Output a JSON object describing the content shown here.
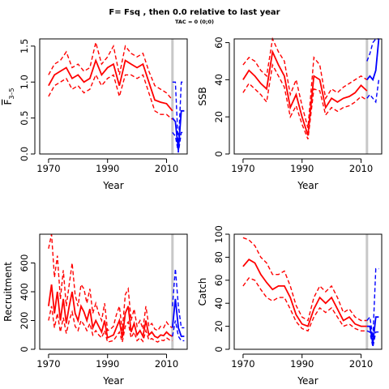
{
  "page": {
    "title": "F= Fsq , then 0.0  relative to last year",
    "subtitle": "TAC = 0 (0;0)"
  },
  "colors": {
    "history": "#ff0000",
    "projection": "#0000ff",
    "marker": "#c8c8c8",
    "axis": "#000000"
  },
  "chart_data": [
    {
      "id": "fbar",
      "type": "line",
      "title": "",
      "xlabel": "Year",
      "ylabel": "F̅ 3–5",
      "ylabel_main": "F",
      "ylabel_sub": "3–5",
      "xlim": [
        1967,
        2017
      ],
      "ylim": [
        0,
        1.6
      ],
      "xticks": [
        1970,
        1990,
        2010
      ],
      "xtick_labels": [
        "1970",
        "1990",
        "2010"
      ],
      "yticks": [
        0,
        0.5,
        1.0,
        1.5
      ],
      "ytick_labels": [
        "0.0",
        "0.5",
        "1.0",
        "1.5"
      ],
      "marker_year": 2012,
      "series": [
        {
          "role": "history-median",
          "x": [
            1970,
            1972,
            1974,
            1976,
            1978,
            1980,
            1982,
            1984,
            1986,
            1988,
            1990,
            1992,
            1994,
            1996,
            1998,
            2000,
            2002,
            2004,
            2006,
            2008,
            2010,
            2012
          ],
          "y": [
            0.95,
            1.1,
            1.15,
            1.2,
            1.05,
            1.1,
            1.0,
            1.05,
            1.3,
            1.1,
            1.2,
            1.25,
            0.95,
            1.3,
            1.25,
            1.2,
            1.25,
            1.0,
            0.75,
            0.72,
            0.7,
            0.6
          ]
        },
        {
          "role": "history-upper",
          "x": [
            1970,
            1972,
            1974,
            1976,
            1978,
            1980,
            1982,
            1984,
            1986,
            1988,
            1990,
            1992,
            1994,
            1996,
            1998,
            2000,
            2002,
            2004,
            2006,
            2008,
            2010,
            2012
          ],
          "y": [
            1.1,
            1.25,
            1.3,
            1.42,
            1.2,
            1.25,
            1.15,
            1.2,
            1.55,
            1.25,
            1.35,
            1.5,
            1.1,
            1.5,
            1.4,
            1.35,
            1.4,
            1.15,
            0.95,
            0.9,
            0.85,
            0.75
          ]
        },
        {
          "role": "history-lower",
          "x": [
            1970,
            1972,
            1974,
            1976,
            1978,
            1980,
            1982,
            1984,
            1986,
            1988,
            1990,
            1992,
            1994,
            1996,
            1998,
            2000,
            2002,
            2004,
            2006,
            2008,
            2010,
            2012
          ],
          "y": [
            0.8,
            0.95,
            1.0,
            1.05,
            0.9,
            0.95,
            0.85,
            0.9,
            1.1,
            0.95,
            1.05,
            1.1,
            0.8,
            1.1,
            1.1,
            1.05,
            1.1,
            0.85,
            0.6,
            0.55,
            0.55,
            0.48
          ]
        },
        {
          "role": "projection-median",
          "x": [
            2012,
            2013,
            2014,
            2015,
            2016
          ],
          "y": [
            0.5,
            0.45,
            0.05,
            0.6,
            0.6
          ]
        },
        {
          "role": "projection-upper",
          "x": [
            2012,
            2013,
            2014,
            2015,
            2016
          ],
          "y": [
            1.0,
            1.0,
            0.1,
            1.0,
            1.0
          ]
        },
        {
          "role": "projection-lower",
          "x": [
            2012,
            2013,
            2014,
            2015,
            2016
          ],
          "y": [
            0.3,
            0.25,
            0.02,
            0.3,
            0.3
          ]
        }
      ]
    },
    {
      "id": "ssb",
      "type": "line",
      "title": "",
      "xlabel": "Year",
      "ylabel": "SSB",
      "xlim": [
        1967,
        2017
      ],
      "ylim": [
        0,
        62
      ],
      "xticks": [
        1970,
        1990,
        2010
      ],
      "xtick_labels": [
        "1970",
        "1990",
        "2010"
      ],
      "yticks": [
        0,
        20,
        40,
        60
      ],
      "ytick_labels": [
        "0",
        "20",
        "40",
        "60"
      ],
      "marker_year": 2012,
      "series": [
        {
          "role": "history-median",
          "x": [
            1970,
            1972,
            1974,
            1976,
            1978,
            1980,
            1982,
            1984,
            1986,
            1988,
            1990,
            1992,
            1994,
            1996,
            1998,
            2000,
            2002,
            2004,
            2006,
            2008,
            2010,
            2012
          ],
          "y": [
            40,
            45,
            42,
            38,
            35,
            55,
            48,
            42,
            25,
            32,
            20,
            10,
            42,
            40,
            25,
            30,
            28,
            30,
            31,
            33,
            37,
            34
          ]
        },
        {
          "role": "history-upper",
          "x": [
            1970,
            1972,
            1974,
            1976,
            1978,
            1980,
            1982,
            1984,
            1986,
            1988,
            1990,
            1992,
            1994,
            1996,
            1998,
            2000,
            2002,
            2004,
            2006,
            2008,
            2010,
            2012
          ],
          "y": [
            48,
            52,
            50,
            45,
            42,
            62,
            55,
            50,
            32,
            40,
            26,
            14,
            52,
            48,
            30,
            35,
            33,
            36,
            38,
            40,
            42,
            40
          ]
        },
        {
          "role": "history-lower",
          "x": [
            1970,
            1972,
            1974,
            1976,
            1978,
            1980,
            1982,
            1984,
            1986,
            1988,
            1990,
            1992,
            1994,
            1996,
            1998,
            2000,
            2002,
            2004,
            2006,
            2008,
            2010,
            2012
          ],
          "y": [
            33,
            38,
            35,
            32,
            28,
            48,
            42,
            36,
            20,
            26,
            16,
            8,
            35,
            34,
            21,
            25,
            23,
            25,
            26,
            28,
            31,
            29
          ]
        },
        {
          "role": "projection-median",
          "x": [
            2012,
            2013,
            2014,
            2015,
            2016
          ],
          "y": [
            40,
            42,
            40,
            45,
            65
          ]
        },
        {
          "role": "projection-upper",
          "x": [
            2012,
            2013,
            2014,
            2015,
            2016
          ],
          "y": [
            50,
            54,
            60,
            70,
            85
          ]
        },
        {
          "role": "projection-lower",
          "x": [
            2012,
            2013,
            2014,
            2015,
            2016
          ],
          "y": [
            30,
            32,
            30,
            28,
            40
          ]
        }
      ]
    },
    {
      "id": "recruitment",
      "type": "line",
      "title": "",
      "xlabel": "Year",
      "ylabel": "Recruitment",
      "xlim": [
        1967,
        2017
      ],
      "ylim": [
        0,
        800
      ],
      "xticks": [
        1970,
        1990,
        2010
      ],
      "xtick_labels": [
        "1970",
        "1990",
        "2010"
      ],
      "yticks": [
        0,
        200,
        400,
        600
      ],
      "ytick_labels": [
        "0",
        "200",
        "400",
        "600"
      ],
      "marker_year": 2012,
      "series": [
        {
          "role": "history-median",
          "x": [
            1970,
            1971,
            1972,
            1973,
            1974,
            1975,
            1976,
            1977,
            1978,
            1979,
            1980,
            1981,
            1982,
            1983,
            1984,
            1985,
            1986,
            1987,
            1988,
            1989,
            1990,
            1991,
            1992,
            1993,
            1994,
            1995,
            1996,
            1997,
            1998,
            1999,
            2000,
            2001,
            2002,
            2003,
            2004,
            2005,
            2006,
            2007,
            2008,
            2009,
            2010,
            2011,
            2012
          ],
          "y": [
            300,
            450,
            250,
            400,
            200,
            350,
            180,
            300,
            400,
            250,
            200,
            300,
            260,
            200,
            280,
            150,
            200,
            160,
            120,
            200,
            80,
            90,
            100,
            150,
            200,
            80,
            250,
            300,
            120,
            180,
            100,
            130,
            90,
            200,
            100,
            120,
            90,
            80,
            100,
            95,
            120,
            100,
            90
          ]
        },
        {
          "role": "history-upper",
          "x": [
            1970,
            1971,
            1972,
            1973,
            1974,
            1975,
            1976,
            1977,
            1978,
            1979,
            1980,
            1981,
            1982,
            1983,
            1984,
            1985,
            1986,
            1987,
            1988,
            1989,
            1990,
            1991,
            1992,
            1993,
            1994,
            1995,
            1996,
            1997,
            1998,
            1999,
            2000,
            2001,
            2002,
            2003,
            2004,
            2005,
            2006,
            2007,
            2008,
            2009,
            2010,
            2011,
            2012
          ],
          "y": [
            700,
            800,
            500,
            650,
            350,
            550,
            300,
            450,
            600,
            380,
            300,
            450,
            420,
            320,
            420,
            250,
            320,
            250,
            200,
            320,
            130,
            140,
            160,
            240,
            300,
            130,
            380,
            420,
            200,
            280,
            160,
            200,
            140,
            300,
            160,
            180,
            140,
            130,
            160,
            150,
            190,
            160,
            150
          ]
        },
        {
          "role": "history-lower",
          "x": [
            1970,
            1971,
            1972,
            1973,
            1974,
            1975,
            1976,
            1977,
            1978,
            1979,
            1980,
            1981,
            1982,
            1983,
            1984,
            1985,
            1986,
            1987,
            1988,
            1989,
            1990,
            1991,
            1992,
            1993,
            1994,
            1995,
            1996,
            1997,
            1998,
            1999,
            2000,
            2001,
            2002,
            2003,
            2004,
            2005,
            2006,
            2007,
            2008,
            2009,
            2010,
            2011,
            2012
          ],
          "y": [
            200,
            300,
            150,
            250,
            120,
            220,
            110,
            200,
            260,
            160,
            130,
            200,
            170,
            130,
            180,
            100,
            130,
            100,
            80,
            130,
            50,
            55,
            60,
            90,
            120,
            50,
            160,
            190,
            80,
            120,
            60,
            80,
            55,
            130,
            65,
            75,
            60,
            50,
            65,
            60,
            80,
            65,
            60
          ]
        },
        {
          "role": "projection-median",
          "x": [
            2012,
            2013,
            2014,
            2015,
            2016
          ],
          "y": [
            150,
            350,
            150,
            90,
            90
          ]
        },
        {
          "role": "projection-upper",
          "x": [
            2012,
            2013,
            2014,
            2015,
            2016
          ],
          "y": [
            300,
            560,
            300,
            150,
            150
          ]
        },
        {
          "role": "projection-lower",
          "x": [
            2012,
            2013,
            2014,
            2015,
            2016
          ],
          "y": [
            90,
            200,
            90,
            60,
            60
          ]
        }
      ]
    },
    {
      "id": "catch",
      "type": "line",
      "title": "",
      "xlabel": "Year",
      "ylabel": "Catch",
      "xlim": [
        1967,
        2017
      ],
      "ylim": [
        0,
        100
      ],
      "xticks": [
        1970,
        1990,
        2010
      ],
      "xtick_labels": [
        "1970",
        "1990",
        "2010"
      ],
      "yticks": [
        0,
        20,
        40,
        60,
        80,
        100
      ],
      "ytick_labels": [
        "0",
        "20",
        "40",
        "60",
        "80",
        "100"
      ],
      "marker_year": 2012,
      "series": [
        {
          "role": "history-median",
          "x": [
            1970,
            1972,
            1974,
            1976,
            1978,
            1980,
            1982,
            1984,
            1986,
            1988,
            1990,
            1992,
            1994,
            1996,
            1998,
            2000,
            2002,
            2004,
            2006,
            2008,
            2010,
            2012
          ],
          "y": [
            72,
            78,
            75,
            65,
            58,
            52,
            55,
            55,
            45,
            30,
            22,
            20,
            35,
            45,
            40,
            45,
            35,
            25,
            28,
            22,
            20,
            20
          ]
        },
        {
          "role": "history-upper",
          "x": [
            1970,
            1972,
            1974,
            1976,
            1978,
            1980,
            1982,
            1984,
            1986,
            1988,
            1990,
            1992,
            1994,
            1996,
            1998,
            2000,
            2002,
            2004,
            2006,
            2008,
            2010,
            2012
          ],
          "y": [
            97,
            95,
            90,
            80,
            75,
            65,
            65,
            68,
            55,
            38,
            28,
            25,
            45,
            55,
            50,
            55,
            45,
            32,
            35,
            28,
            25,
            25
          ]
        },
        {
          "role": "history-lower",
          "x": [
            1970,
            1972,
            1974,
            1976,
            1978,
            1980,
            1982,
            1984,
            1986,
            1988,
            1990,
            1992,
            1994,
            1996,
            1998,
            2000,
            2002,
            2004,
            2006,
            2008,
            2010,
            2012
          ],
          "y": [
            55,
            62,
            60,
            52,
            45,
            42,
            45,
            45,
            35,
            24,
            18,
            16,
            28,
            36,
            32,
            36,
            28,
            20,
            22,
            18,
            16,
            16
          ]
        },
        {
          "role": "projection-median",
          "x": [
            2012,
            2013,
            2014,
            2015,
            2016
          ],
          "y": [
            20,
            20,
            5,
            28,
            28
          ]
        },
        {
          "role": "projection-upper",
          "x": [
            2012,
            2013,
            2014,
            2015,
            2016
          ],
          "y": [
            25,
            28,
            10,
            70,
            70
          ]
        },
        {
          "role": "projection-lower",
          "x": [
            2012,
            2013,
            2014,
            2015,
            2016
          ],
          "y": [
            16,
            15,
            2,
            15,
            15
          ]
        }
      ]
    }
  ]
}
